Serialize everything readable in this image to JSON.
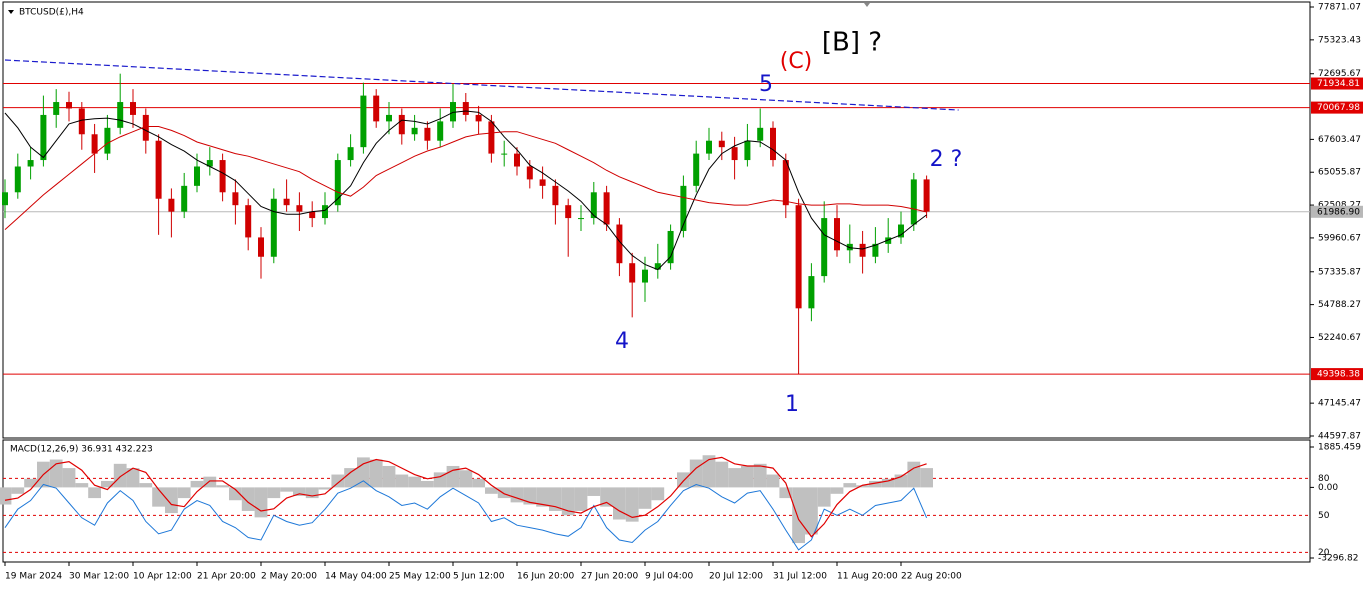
{
  "chart_data": {
    "type": "candlestick",
    "symbol": "BTCUSD(£),H4",
    "categories": [
      "19 Mar 2024",
      null,
      null,
      null,
      null,
      "30 Mar 12:00",
      null,
      null,
      null,
      null,
      "10 Apr 12:00",
      null,
      null,
      null,
      null,
      "21 Apr 20:00",
      null,
      null,
      null,
      null,
      "2 May 20:00",
      null,
      null,
      null,
      null,
      "14 May 04:00",
      null,
      null,
      null,
      null,
      "25 May 12:00",
      null,
      null,
      null,
      null,
      "5 Jun 12:00",
      null,
      null,
      null,
      null,
      "16 Jun 20:00",
      null,
      null,
      null,
      null,
      "27 Jun 20:00",
      null,
      null,
      null,
      null,
      "9 Jul 04:00",
      null,
      null,
      null,
      null,
      "20 Jul 12:00",
      null,
      null,
      null,
      null,
      "31 Jul 12:00",
      null,
      null,
      null,
      null,
      "11 Aug 20:00",
      null,
      null,
      null,
      null,
      "22 Aug 20:00",
      null,
      null
    ],
    "candles": [
      [
        62500,
        64500,
        61500,
        63500
      ],
      [
        63500,
        66500,
        63000,
        65500
      ],
      [
        65500,
        67000,
        64500,
        66000
      ],
      [
        66000,
        71000,
        65500,
        69500
      ],
      [
        69500,
        71500,
        68500,
        70500
      ],
      [
        70500,
        71300,
        69000,
        70000
      ],
      [
        70000,
        70500,
        66800,
        68000
      ],
      [
        68000,
        68800,
        65000,
        66500
      ],
      [
        66500,
        69500,
        66000,
        68500
      ],
      [
        68500,
        72700,
        68000,
        70500
      ],
      [
        70500,
        71500,
        68500,
        69500
      ],
      [
        69500,
        70000,
        66500,
        67500
      ],
      [
        67500,
        68000,
        60200,
        63000
      ],
      [
        63000,
        63800,
        60000,
        62000
      ],
      [
        62000,
        65000,
        61500,
        64000
      ],
      [
        64000,
        66500,
        63500,
        65500
      ],
      [
        65500,
        67000,
        64800,
        66000
      ],
      [
        66000,
        66500,
        62800,
        63500
      ],
      [
        63500,
        64500,
        61000,
        62500
      ],
      [
        62500,
        63000,
        59000,
        60000
      ],
      [
        60000,
        60800,
        56800,
        58500
      ],
      [
        58500,
        63800,
        58000,
        63000
      ],
      [
        63000,
        64500,
        62000,
        62500
      ],
      [
        62500,
        63500,
        60500,
        62000
      ],
      [
        62000,
        62800,
        60800,
        61500
      ],
      [
        61500,
        63500,
        61000,
        62500
      ],
      [
        62500,
        66500,
        62000,
        66000
      ],
      [
        66000,
        68000,
        65500,
        67000
      ],
      [
        67000,
        72000,
        66500,
        71000
      ],
      [
        71000,
        71500,
        68500,
        69000
      ],
      [
        69000,
        70500,
        68000,
        69500
      ],
      [
        69500,
        70000,
        67200,
        68000
      ],
      [
        68000,
        69500,
        67500,
        68500
      ],
      [
        68500,
        69000,
        66800,
        67500
      ],
      [
        67500,
        70000,
        67000,
        69000
      ],
      [
        69000,
        71900,
        68500,
        70500
      ],
      [
        70500,
        71200,
        69000,
        69500
      ],
      [
        69500,
        70200,
        68000,
        69000
      ],
      [
        69000,
        69500,
        65800,
        66500
      ],
      [
        66500,
        67500,
        65500,
        66500
      ],
      [
        66500,
        67000,
        64800,
        65500
      ],
      [
        65500,
        66000,
        63800,
        64500
      ],
      [
        64500,
        65500,
        63000,
        64000
      ],
      [
        64000,
        64500,
        61000,
        62500
      ],
      [
        62500,
        63000,
        58500,
        61500
      ],
      [
        61500,
        62500,
        60500,
        61500
      ],
      [
        61500,
        64300,
        61000,
        63500
      ],
      [
        63500,
        64000,
        60500,
        61000
      ],
      [
        61000,
        61500,
        57000,
        58000
      ],
      [
        58000,
        58800,
        53800,
        56500
      ],
      [
        56500,
        58500,
        55000,
        57500
      ],
      [
        57500,
        59500,
        56800,
        58000
      ],
      [
        58000,
        61000,
        57500,
        60500
      ],
      [
        60500,
        64800,
        60000,
        64000
      ],
      [
        64000,
        67500,
        63500,
        66500
      ],
      [
        66500,
        68500,
        66000,
        67500
      ],
      [
        67500,
        68200,
        66000,
        67000
      ],
      [
        67000,
        67800,
        64500,
        66000
      ],
      [
        66000,
        68800,
        65500,
        67500
      ],
      [
        67500,
        70000,
        67000,
        68500
      ],
      [
        68500,
        69000,
        65500,
        66000
      ],
      [
        66000,
        66500,
        61500,
        62500
      ],
      [
        62500,
        63000,
        49400,
        54500
      ],
      [
        54500,
        58000,
        53500,
        57000
      ],
      [
        57000,
        62800,
        56500,
        61500
      ],
      [
        61500,
        62500,
        58500,
        59000
      ],
      [
        59000,
        61000,
        58000,
        59500
      ],
      [
        59500,
        60500,
        57200,
        58500
      ],
      [
        58500,
        60800,
        58000,
        59500
      ],
      [
        59500,
        61500,
        58800,
        60000
      ],
      [
        60000,
        62000,
        59500,
        61000
      ],
      [
        61000,
        65000,
        60500,
        64500
      ],
      [
        64500,
        64800,
        61500,
        62000
      ]
    ],
    "up_color": "#00a000",
    "down_color": "#d00000",
    "ylim": [
      44597.87,
      77871.07
    ],
    "yticks": [
      77871.07,
      75323.43,
      72695.67,
      67603.47,
      65055.87,
      62508.27,
      59960.67,
      57335.87,
      54788.27,
      52240.67,
      47145.47,
      44597.87
    ],
    "overlays": [
      {
        "color": "#000000",
        "values": [
          69650,
          68500,
          67000,
          66200,
          67500,
          68800,
          69100,
          69200,
          69250,
          69100,
          68800,
          68300,
          67800,
          67200,
          66700,
          66000,
          65500,
          65000,
          64400,
          63400,
          62400,
          62000,
          61800,
          61800,
          62000,
          62100,
          63000,
          64000,
          65800,
          67300,
          68300,
          69100,
          69000,
          68800,
          69200,
          69700,
          69800,
          69700,
          69000,
          67800,
          66800,
          65600,
          65000,
          64300,
          63600,
          62800,
          61700,
          61000,
          59700,
          58600,
          57900,
          57500,
          58500,
          61000,
          63300,
          65300,
          66500,
          67100,
          67500,
          67400,
          66800,
          66000,
          63500,
          61500,
          60200,
          59700,
          59200,
          59100,
          59400,
          59800,
          60200,
          61000,
          61750
        ]
      },
      {
        "color": "#d00000",
        "values": [
          60600,
          61500,
          62400,
          63300,
          64100,
          64900,
          65700,
          66500,
          67300,
          67800,
          68200,
          68600,
          68600,
          68300,
          67900,
          67400,
          67100,
          66800,
          66500,
          66300,
          66000,
          65700,
          65400,
          65100,
          64500,
          64000,
          63500,
          63200,
          63900,
          64800,
          65300,
          65800,
          66300,
          66700,
          67000,
          67400,
          67800,
          68000,
          68100,
          68200,
          68200,
          67900,
          67600,
          67300,
          66800,
          66300,
          65800,
          65200,
          64700,
          64300,
          63900,
          63500,
          63300,
          63100,
          62900,
          62700,
          62600,
          62500,
          62500,
          62700,
          62900,
          62800,
          62600,
          62500,
          62500,
          62600,
          62600,
          62500,
          62500,
          62500,
          62400,
          62200,
          61970
        ]
      }
    ],
    "trendline": {
      "color": "#1a1acc",
      "x": [
        0,
        74.5
      ],
      "values": [
        73760,
        69880
      ]
    },
    "hlines": [
      {
        "value": 71934.81,
        "color": "#e00000"
      },
      {
        "value": 70067.98,
        "color": "#e00000"
      },
      {
        "value": 61986.9,
        "label": "61986.90",
        "color": "#b8b8b8"
      },
      {
        "value": 49398.38,
        "color": "#e00000"
      }
    ],
    "annotations": [
      {
        "text": "[B] ?",
        "color": "#000000"
      },
      {
        "text": "(C)",
        "color": "#e00000"
      },
      {
        "text": "5",
        "color": "#1414c8"
      },
      {
        "text": "4",
        "color": "#1414c8"
      },
      {
        "text": "1",
        "color": "#1414c8"
      },
      {
        "text": "2 ?",
        "color": "#1414c8"
      }
    ],
    "macd": {
      "title": "MACD(12,26,9) 36.931 432.223",
      "ylim": [
        -3296.82,
        1885.459
      ],
      "yticks": [
        1885.459,
        {
          "value": 0,
          "label": "0.00"
        },
        -3296.82
      ],
      "y2lim": [
        15.4,
        105.4
      ],
      "y2ticks": [
        80,
        50,
        20
      ],
      "histogram": [
        -800,
        -300,
        400,
        1200,
        1300,
        900,
        200,
        -500,
        300,
        1100,
        900,
        200,
        -900,
        -1200,
        -500,
        300,
        500,
        100,
        -600,
        -1100,
        -1400,
        -500,
        -200,
        -400,
        -500,
        -100,
        600,
        900,
        1400,
        1300,
        1000,
        600,
        500,
        300,
        700,
        1000,
        800,
        400,
        -300,
        -500,
        -700,
        -800,
        -900,
        -1100,
        -1300,
        -1100,
        -400,
        -900,
        -1500,
        -1600,
        -1000,
        -600,
        0,
        700,
        1300,
        1500,
        1200,
        900,
        1000,
        1100,
        600,
        -500,
        -2600,
        -2200,
        -900,
        -300,
        200,
        100,
        300,
        400,
        600,
        1200,
        900
      ],
      "histogram_color": "#c0c0c0",
      "signal": {
        "color": "#e00000",
        "values": [
          -600,
          -500,
          -100,
          600,
          1100,
          1200,
          800,
          100,
          -100,
          500,
          900,
          700,
          -100,
          -800,
          -900,
          -200,
          300,
          300,
          -100,
          -700,
          -1100,
          -1000,
          -500,
          -300,
          -400,
          -300,
          200,
          700,
          1100,
          1300,
          1200,
          900,
          600,
          400,
          500,
          800,
          900,
          600,
          100,
          -300,
          -500,
          -700,
          -800,
          -900,
          -1100,
          -1200,
          -900,
          -700,
          -1100,
          -1400,
          -1300,
          -900,
          -400,
          300,
          900,
          1300,
          1400,
          1100,
          1000,
          1000,
          900,
          200,
          -1500,
          -2300,
          -1700,
          -800,
          -200,
          100,
          200,
          300,
          500,
          900,
          1100
        ]
      },
      "line": {
        "color": "#1e78d8",
        "axis": "y2",
        "values": [
          40,
          55,
          62,
          75,
          72,
          60,
          48,
          42,
          60,
          70,
          62,
          45,
          35,
          38,
          55,
          62,
          58,
          45,
          40,
          32,
          30,
          50,
          45,
          42,
          44,
          55,
          68,
          72,
          78,
          70,
          65,
          58,
          60,
          55,
          65,
          72,
          66,
          60,
          45,
          48,
          42,
          40,
          38,
          35,
          33,
          40,
          58,
          40,
          30,
          28,
          38,
          45,
          58,
          70,
          75,
          72,
          65,
          60,
          68,
          70,
          55,
          38,
          22,
          30,
          55,
          50,
          55,
          50,
          58,
          60,
          62,
          72,
          48
        ]
      }
    }
  }
}
